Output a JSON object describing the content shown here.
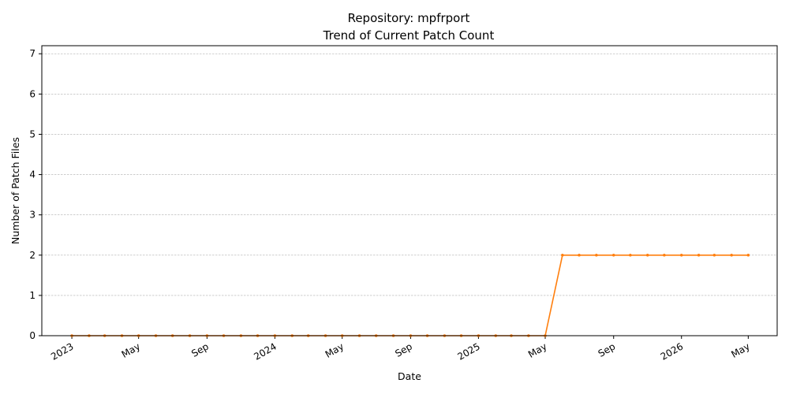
{
  "chart_data": {
    "type": "line",
    "title": "Repository: mpfrport",
    "subtitle": "Trend of Current Patch Count",
    "xlabel": "Date",
    "ylabel": "Number of Patch Files",
    "ylim": [
      0,
      7.2
    ],
    "yticks": [
      0,
      1,
      2,
      3,
      4,
      5,
      6,
      7
    ],
    "xticks": [
      {
        "date": "2023-01-01",
        "label": "2023"
      },
      {
        "date": "2023-05-01",
        "label": "May"
      },
      {
        "date": "2023-09-01",
        "label": "Sep"
      },
      {
        "date": "2024-01-01",
        "label": "2024"
      },
      {
        "date": "2024-05-01",
        "label": "May"
      },
      {
        "date": "2024-09-01",
        "label": "Sep"
      },
      {
        "date": "2025-01-01",
        "label": "2025"
      },
      {
        "date": "2025-05-01",
        "label": "May"
      },
      {
        "date": "2025-09-01",
        "label": "Sep"
      },
      {
        "date": "2026-01-01",
        "label": "2026"
      },
      {
        "date": "2026-05-01",
        "label": "May"
      }
    ],
    "xlim": [
      "2022-11-08",
      "2026-06-22"
    ],
    "grid": "y-dashed",
    "color": "#ff7f0e",
    "series": [
      {
        "x": [
          "2023-01-01",
          "2023-02-01",
          "2023-03-01",
          "2023-04-01",
          "2023-05-01",
          "2023-06-01",
          "2023-07-01",
          "2023-08-01",
          "2023-09-01",
          "2023-10-01",
          "2023-11-01",
          "2023-12-01",
          "2024-01-01",
          "2024-02-01",
          "2024-03-01",
          "2024-04-01",
          "2024-05-01",
          "2024-06-01",
          "2024-07-01",
          "2024-08-01",
          "2024-09-01",
          "2024-10-01",
          "2024-11-01",
          "2024-12-01",
          "2025-01-01",
          "2025-02-01",
          "2025-03-01",
          "2025-04-01",
          "2025-05-01",
          "2025-06-01",
          "2025-07-01",
          "2025-08-01",
          "2025-09-01",
          "2025-10-01",
          "2025-11-01",
          "2025-12-01",
          "2026-01-01",
          "2026-02-01",
          "2026-03-01",
          "2026-04-01",
          "2026-05-01"
        ],
        "values": [
          0,
          0,
          0,
          0,
          0,
          0,
          0,
          0,
          0,
          0,
          0,
          0,
          0,
          0,
          0,
          0,
          0,
          0,
          0,
          0,
          0,
          0,
          0,
          0,
          0,
          0,
          0,
          0,
          0,
          2,
          2,
          2,
          2,
          2,
          2,
          2,
          2,
          2,
          2,
          2,
          2
        ]
      }
    ]
  }
}
